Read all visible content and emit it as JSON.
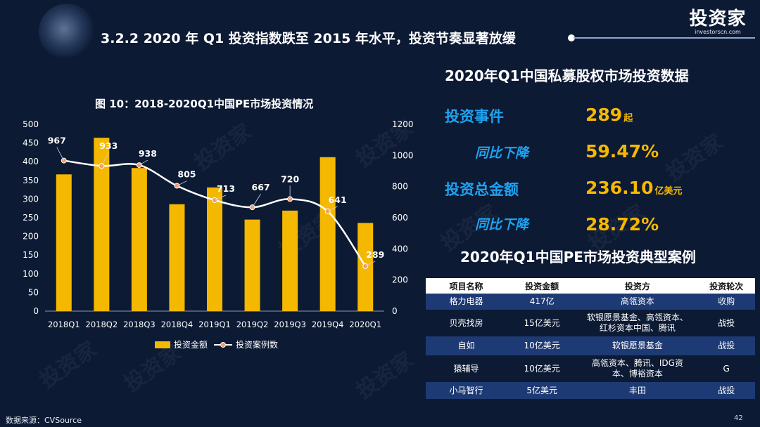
{
  "header": {
    "title": "3.2.2 2020 年 Q1 投资指数跌至 2015 年水平，投资节奏显著放缓",
    "logo_text": "投资家",
    "logo_url": "investorscn.com"
  },
  "chart_data": {
    "type": "bar",
    "title": "图 10：2018-2020Q1中国PE市场投资情况",
    "categories": [
      "2018Q1",
      "2018Q2",
      "2018Q3",
      "2018Q4",
      "2019Q1",
      "2019Q2",
      "2019Q3",
      "2019Q4",
      "2020Q1"
    ],
    "series": [
      {
        "name": "投资金额",
        "type": "bar",
        "axis": "left",
        "color": "#f5b800",
        "values": [
          366,
          464,
          383,
          286,
          331,
          245,
          269,
          412,
          236
        ]
      },
      {
        "name": "投资案例数",
        "type": "line",
        "axis": "right",
        "color": "#ffffff",
        "values": [
          967,
          933,
          938,
          805,
          713,
          667,
          720,
          641,
          289
        ],
        "labels": [
          "967",
          "933",
          "938",
          "805",
          "713",
          "667",
          "720",
          "641",
          "289"
        ]
      }
    ],
    "y_left": {
      "min": 0,
      "max": 500,
      "ticks": [
        "0",
        "50",
        "100",
        "150",
        "200",
        "250",
        "300",
        "350",
        "400",
        "450",
        "500"
      ]
    },
    "y_right": {
      "min": 0,
      "max": 1200,
      "ticks": [
        "0",
        "200",
        "400",
        "600",
        "800",
        "1000",
        "1200"
      ]
    },
    "legend_position": "bottom",
    "grid": false
  },
  "source": "数据来源：CVSource",
  "page_number": "42",
  "stats": {
    "title": "2020年Q1中国私募股权市场投资数据",
    "events_label": "投资事件",
    "events_value": "289",
    "events_unit": "起",
    "events_decline_label": "同比下降",
    "events_decline_value": "59.47%",
    "amount_label": "投资总金额",
    "amount_value": "236.10",
    "amount_unit": "亿美元",
    "amount_decline_label": "同比下降",
    "amount_decline_value": "28.72%"
  },
  "cases": {
    "title": "2020年Q1中国PE市场投资典型案例",
    "headers": [
      "项目名称",
      "投资金额",
      "投资方",
      "投资轮次"
    ],
    "rows": [
      {
        "name": "格力电器",
        "amount": "417亿",
        "investors": [
          "高瓴资本"
        ],
        "round": "收购"
      },
      {
        "name": "贝壳找房",
        "amount": "15亿美元",
        "investors": [
          "软银愿景基金、高瓴资本、",
          "红杉资本中国、腾讯"
        ],
        "round": "战投"
      },
      {
        "name": "自如",
        "amount": "10亿美元",
        "investors": [
          "软银愿景基金"
        ],
        "round": "战投"
      },
      {
        "name": "猿辅导",
        "amount": "10亿美元",
        "investors": [
          "高瓴资本、腾讯、IDG资",
          "本、博裕资本"
        ],
        "round": "G"
      },
      {
        "name": "小马智行",
        "amount": "5亿美元",
        "investors": [
          "丰田"
        ],
        "round": "战投"
      }
    ]
  },
  "colors": {
    "background": "#0c1a34",
    "accent_yellow": "#f5b800",
    "accent_blue": "#1ea3f0",
    "table_stripe": "#1e3a74"
  }
}
